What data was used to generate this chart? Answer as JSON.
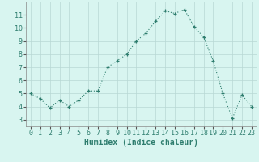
{
  "x": [
    0,
    1,
    2,
    3,
    4,
    5,
    6,
    7,
    8,
    9,
    10,
    11,
    12,
    13,
    14,
    15,
    16,
    17,
    18,
    19,
    20,
    21,
    22,
    23
  ],
  "y": [
    5.0,
    4.6,
    3.9,
    4.5,
    4.0,
    4.5,
    5.2,
    5.2,
    7.0,
    7.5,
    8.0,
    9.0,
    9.6,
    10.5,
    11.3,
    11.1,
    11.4,
    10.1,
    9.3,
    7.5,
    5.0,
    3.1,
    4.9,
    4.0
  ],
  "line_color": "#2e7d6e",
  "marker": "+",
  "bg_color": "#d8f5f0",
  "grid_color": "#b8d8d4",
  "xlabel": "Humidex (Indice chaleur)",
  "ylim": [
    2.5,
    12.0
  ],
  "xlim": [
    -0.5,
    23.5
  ],
  "yticks": [
    3,
    4,
    5,
    6,
    7,
    8,
    9,
    10,
    11
  ],
  "xticks": [
    0,
    1,
    2,
    3,
    4,
    5,
    6,
    7,
    8,
    9,
    10,
    11,
    12,
    13,
    14,
    15,
    16,
    17,
    18,
    19,
    20,
    21,
    22,
    23
  ],
  "xlabel_fontsize": 7,
  "tick_fontsize": 6,
  "line_width": 0.8,
  "marker_size": 3.5,
  "marker_edge_width": 0.9
}
